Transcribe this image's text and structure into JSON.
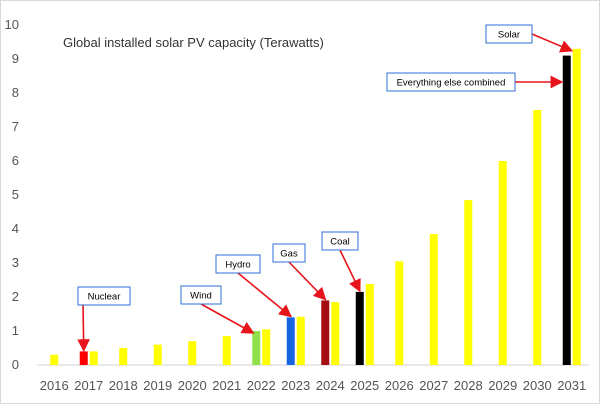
{
  "chart_data": {
    "type": "bar",
    "title": "Global installed solar PV capacity (Terawatts)",
    "xlabel": "",
    "ylabel": "",
    "ylim": [
      0,
      10
    ],
    "yticks": [
      0,
      1,
      2,
      3,
      4,
      5,
      6,
      7,
      8,
      9,
      10
    ],
    "categories": [
      "2016",
      "2017",
      "2018",
      "2019",
      "2020",
      "2021",
      "2022",
      "2023",
      "2024",
      "2025",
      "2026",
      "2027",
      "2028",
      "2029",
      "2030",
      "2031"
    ],
    "series": [
      {
        "name": "Solar",
        "color": "#ffff00",
        "values": [
          0.3,
          0.4,
          0.5,
          0.6,
          0.7,
          0.85,
          1.05,
          1.42,
          1.85,
          2.38,
          3.05,
          3.85,
          4.85,
          6.0,
          7.5,
          9.3
        ]
      }
    ],
    "comparisons": [
      {
        "label": "Nuclear",
        "year": "2017",
        "value": 0.4,
        "color": "#ff0000"
      },
      {
        "label": "Wind",
        "year": "2022",
        "value": 1.0,
        "color": "#8fe04a"
      },
      {
        "label": "Hydro",
        "year": "2023",
        "value": 1.4,
        "color": "#1565e0"
      },
      {
        "label": "Gas",
        "year": "2024",
        "value": 1.9,
        "color": "#a50f12"
      },
      {
        "label": "Coal",
        "year": "2025",
        "value": 2.15,
        "color": "#000000"
      },
      {
        "label": "Everything else combined",
        "year": "2031",
        "value": 9.1,
        "color": "#000000"
      }
    ],
    "callouts": [
      {
        "label": "Solar",
        "points_to": "solar-2031"
      },
      {
        "label": "Everything else combined",
        "points_to": "comparison-2031"
      },
      {
        "label": "Coal",
        "points_to": "comparison-2025"
      },
      {
        "label": "Gas",
        "points_to": "comparison-2024"
      },
      {
        "label": "Hydro",
        "points_to": "comparison-2023"
      },
      {
        "label": "Wind",
        "points_to": "comparison-2022"
      },
      {
        "label": "Nuclear",
        "points_to": "comparison-2017"
      }
    ],
    "grid": false,
    "legend": "none"
  }
}
